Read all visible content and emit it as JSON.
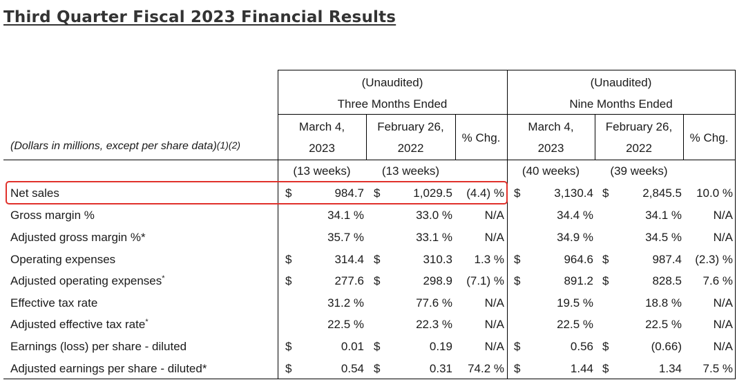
{
  "title": "Third Quarter Fiscal 2023 Financial Results",
  "header": {
    "unaudited": "(Unaudited)",
    "three_months": "Three Months Ended",
    "nine_months": "Nine Months Ended",
    "unit_note": "(Dollars in millions, except per share data)",
    "unit_note_sup": "(1)(2)",
    "col_march_line1": "March 4,",
    "col_march_line2": "2023",
    "col_feb_line1": "February 26,",
    "col_feb_line2": "2022",
    "col_pct": "% Chg.",
    "weeks": [
      "(13 weeks)",
      "(13 weeks)",
      "(40 weeks)",
      "(39 weeks)"
    ]
  },
  "rows": [
    {
      "label": "Net sales",
      "sup": "",
      "d1": "$",
      "v1": "984.7",
      "d2": "$",
      "v2": "1,029.5",
      "p1": "(4.4) %",
      "d3": "$",
      "v3": "3,130.4",
      "d4": "$",
      "v4": "2,845.5",
      "p2": "10.0 %"
    },
    {
      "label": "Gross margin %",
      "sup": "",
      "d1": "",
      "v1": "34.1 %",
      "d2": "",
      "v2": "33.0 %",
      "p1": "N/A",
      "d3": "",
      "v3": "34.4 %",
      "d4": "",
      "v4": "34.1 %",
      "p2": "N/A"
    },
    {
      "label": "Adjusted gross margin %*",
      "sup": "",
      "d1": "",
      "v1": "35.7 %",
      "d2": "",
      "v2": "33.1 %",
      "p1": "N/A",
      "d3": "",
      "v3": "34.9 %",
      "d4": "",
      "v4": "34.5 %",
      "p2": "N/A"
    },
    {
      "label": "Operating expenses",
      "sup": "",
      "d1": "$",
      "v1": "314.4",
      "d2": "$",
      "v2": "310.3",
      "p1": "1.3 %",
      "d3": "$",
      "v3": "964.6",
      "d4": "$",
      "v4": "987.4",
      "p2": "(2.3) %"
    },
    {
      "label": "Adjusted operating expenses",
      "sup": "*",
      "d1": "$",
      "v1": "277.6",
      "d2": "$",
      "v2": "298.9",
      "p1": "(7.1) %",
      "d3": "$",
      "v3": "891.2",
      "d4": "$",
      "v4": "828.5",
      "p2": "7.6 %"
    },
    {
      "label": "Effective tax rate",
      "sup": "",
      "d1": "",
      "v1": "31.2 %",
      "d2": "",
      "v2": "77.6 %",
      "p1": "N/A",
      "d3": "",
      "v3": "19.5 %",
      "d4": "",
      "v4": "18.8 %",
      "p2": "N/A"
    },
    {
      "label": "Adjusted effective tax rate",
      "sup": "*",
      "d1": "",
      "v1": "22.5 %",
      "d2": "",
      "v2": "22.3 %",
      "p1": "N/A",
      "d3": "",
      "v3": "22.5 %",
      "d4": "",
      "v4": "22.5 %",
      "p2": "N/A"
    },
    {
      "label": "Earnings (loss) per share - diluted",
      "sup": "",
      "d1": "$",
      "v1": "0.01",
      "d2": "$",
      "v2": "0.19",
      "p1": "N/A",
      "d3": "$",
      "v3": "0.56",
      "d4": "$",
      "v4": "(0.66)",
      "p2": "N/A"
    },
    {
      "label": "Adjusted earnings per share - diluted*",
      "sup": "",
      "d1": "$",
      "v1": "0.54",
      "d2": "$",
      "v2": "0.31",
      "p1": "74.2 %",
      "d3": "$",
      "v3": "1.44",
      "d4": "$",
      "v4": "1.34",
      "p2": "7.5 %"
    }
  ],
  "colors": {
    "highlight": "#e0302a",
    "title": "#333333"
  }
}
